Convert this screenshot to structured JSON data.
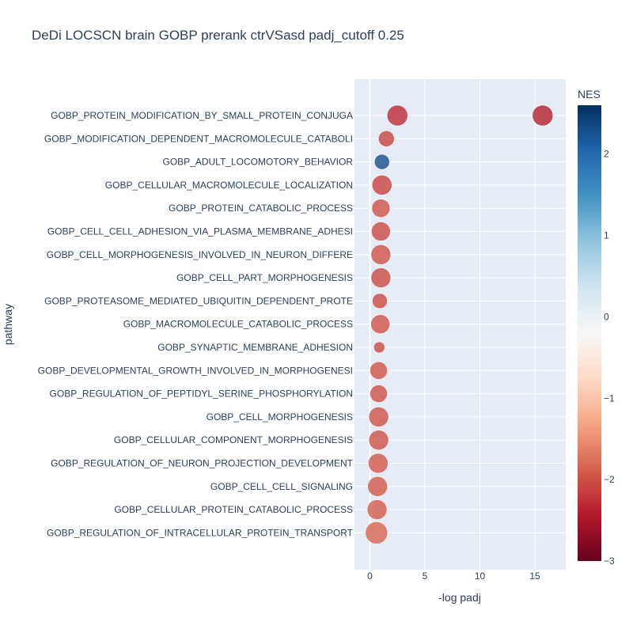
{
  "chart_data": {
    "type": "scatter",
    "title": "DeDi LOCSCN brain GOBP prerank ctrVSasd padj_cutoff 0.25",
    "xlabel": "-log padj",
    "ylabel": "pathway",
    "xlim": [
      -1.4,
      17.8
    ],
    "xticks": [
      0,
      5,
      10,
      15
    ],
    "grid": true,
    "colorbar": {
      "title": "NES",
      "range": [
        -3,
        2.6
      ],
      "ticks": [
        2,
        1,
        0,
        -1,
        -2,
        -3
      ],
      "tick_labels": [
        "2",
        "1",
        "0",
        "−1",
        "−2",
        "−3"
      ],
      "colorscale": "RdBu"
    },
    "categories": [
      "GOBP_PROTEIN_MODIFICATION_BY_SMALL_PROTEIN_CONJUGA",
      "GOBP_MODIFICATION_DEPENDENT_MACROMOLECULE_CATABOLI",
      "GOBP_ADULT_LOCOMOTORY_BEHAVIOR",
      "GOBP_CELLULAR_MACROMOLECULE_LOCALIZATION",
      "GOBP_PROTEIN_CATABOLIC_PROCESS",
      "GOBP_CELL_CELL_ADHESION_VIA_PLASMA_MEMBRANE_ADHESI",
      "GOBP_CELL_MORPHOGENESIS_INVOLVED_IN_NEURON_DIFFERE",
      "GOBP_CELL_PART_MORPHOGENESIS",
      "GOBP_PROTEASOME_MEDIATED_UBIQUITIN_DEPENDENT_PROTE",
      "GOBP_MACROMOLECULE_CATABOLIC_PROCESS",
      "GOBP_SYNAPTIC_MEMBRANE_ADHESION",
      "GOBP_DEVELOPMENTAL_GROWTH_INVOLVED_IN_MORPHOGENESI",
      "GOBP_REGULATION_OF_PEPTIDYL_SERINE_PHOSPHORYLATION",
      "GOBP_CELL_MORPHOGENESIS",
      "GOBP_CELLULAR_COMPONENT_MORPHOGENESIS",
      "GOBP_REGULATION_OF_NEURON_PROJECTION_DEVELOPMENT",
      "GOBP_CELL_CELL_SIGNALING",
      "GOBP_CELLULAR_PROTEIN_CATABOLIC_PROCESS",
      "GOBP_REGULATION_OF_INTRACELLULAR_PROTEIN_TRANSPORT"
    ],
    "points": [
      {
        "pathway": "GOBP_PROTEIN_MODIFICATION_BY_SMALL_PROTEIN_CONJUGA",
        "x": 15.7,
        "nes": -2.4,
        "size": 13
      },
      {
        "pathway": "GOBP_PROTEIN_MODIFICATION_BY_SMALL_PROTEIN_CONJUGA",
        "x": 2.5,
        "nes": -2.3,
        "size": 13
      },
      {
        "pathway": "GOBP_MODIFICATION_DEPENDENT_MACROMOLECULE_CATABOLI",
        "x": 1.5,
        "nes": -2.1,
        "size": 10
      },
      {
        "pathway": "GOBP_ADULT_LOCOMOTORY_BEHAVIOR",
        "x": 1.1,
        "nes": 2.3,
        "size": 9.5
      },
      {
        "pathway": "GOBP_CELLULAR_MACROMOLECULE_LOCALIZATION",
        "x": 1.1,
        "nes": -2.1,
        "size": 12.5
      },
      {
        "pathway": "GOBP_PROTEIN_CATABOLIC_PROCESS",
        "x": 1.0,
        "nes": -2.0,
        "size": 11.5
      },
      {
        "pathway": "GOBP_CELL_CELL_ADHESION_VIA_PLASMA_MEMBRANE_ADHESI",
        "x": 1.0,
        "nes": -2.05,
        "size": 12
      },
      {
        "pathway": "GOBP_CELL_MORPHOGENESIS_INVOLVED_IN_NEURON_DIFFERE",
        "x": 1.0,
        "nes": -2.0,
        "size": 12.5
      },
      {
        "pathway": "GOBP_CELL_PART_MORPHOGENESIS",
        "x": 1.0,
        "nes": -2.05,
        "size": 12.5
      },
      {
        "pathway": "GOBP_PROTEASOME_MEDIATED_UBIQUITIN_DEPENDENT_PROTE",
        "x": 0.9,
        "nes": -2.05,
        "size": 9.5
      },
      {
        "pathway": "GOBP_MACROMOLECULE_CATABOLIC_PROCESS",
        "x": 0.95,
        "nes": -2.0,
        "size": 12
      },
      {
        "pathway": "GOBP_SYNAPTIC_MEMBRANE_ADHESION",
        "x": 0.85,
        "nes": -2.05,
        "size": 7
      },
      {
        "pathway": "GOBP_DEVELOPMENTAL_GROWTH_INVOLVED_IN_MORPHOGENESI",
        "x": 0.8,
        "nes": -2.0,
        "size": 11
      },
      {
        "pathway": "GOBP_REGULATION_OF_PEPTIDYL_SERINE_PHOSPHORYLATION",
        "x": 0.8,
        "nes": -2.0,
        "size": 11
      },
      {
        "pathway": "GOBP_CELL_MORPHOGENESIS",
        "x": 0.8,
        "nes": -2.0,
        "size": 12.5
      },
      {
        "pathway": "GOBP_CELLULAR_COMPONENT_MORPHOGENESIS",
        "x": 0.8,
        "nes": -2.0,
        "size": 12.5
      },
      {
        "pathway": "GOBP_REGULATION_OF_NEURON_PROJECTION_DEVELOPMENT",
        "x": 0.75,
        "nes": -1.95,
        "size": 12.5
      },
      {
        "pathway": "GOBP_CELL_CELL_SIGNALING",
        "x": 0.7,
        "nes": -1.95,
        "size": 12.5
      },
      {
        "pathway": "GOBP_CELLULAR_PROTEIN_CATABOLIC_PROCESS",
        "x": 0.65,
        "nes": -1.9,
        "size": 12.5
      },
      {
        "pathway": "GOBP_REGULATION_OF_INTRACELLULAR_PROTEIN_TRANSPORT",
        "x": 0.6,
        "nes": -1.85,
        "size": 14
      }
    ]
  }
}
